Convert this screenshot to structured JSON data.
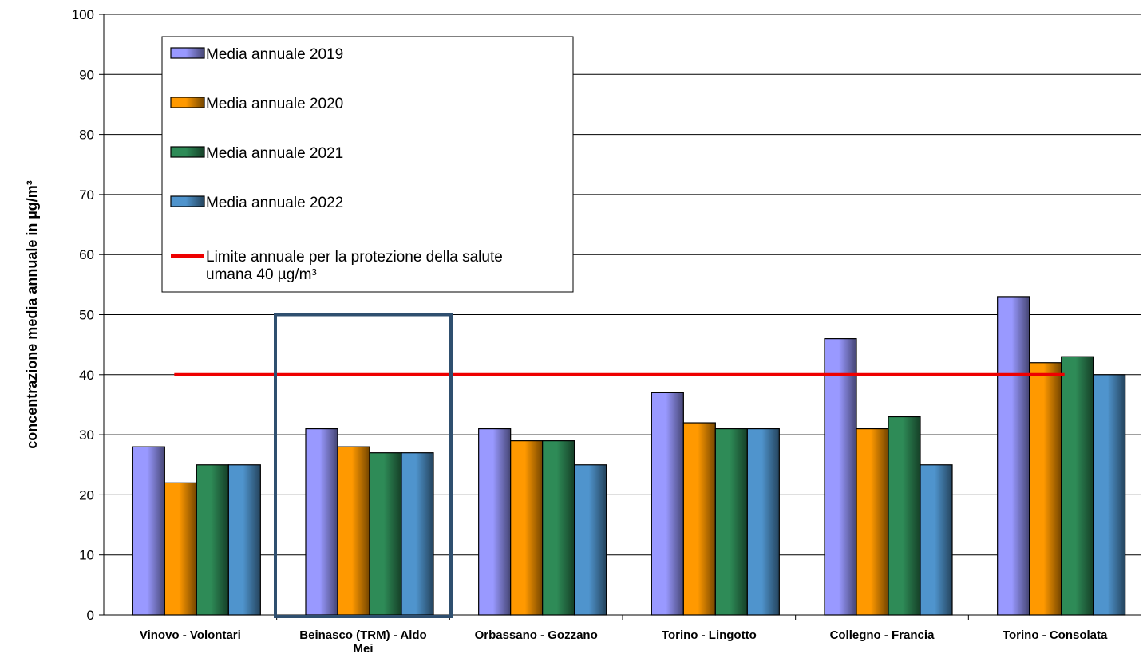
{
  "chart_data": {
    "type": "bar",
    "title": "",
    "xlabel": "",
    "ylabel": "concentrazione media annuale in µg/m³",
    "ylim": [
      0,
      100
    ],
    "yticks": [
      0,
      10,
      20,
      30,
      40,
      50,
      60,
      70,
      80,
      90,
      100
    ],
    "grid": true,
    "legend_position": "top-left",
    "categories": [
      [
        "Vinovo - Volontari"
      ],
      [
        "Beinasco (TRM) - Aldo",
        "Mei"
      ],
      [
        "Orbassano - Gozzano"
      ],
      [
        "Torino - Lingotto"
      ],
      [
        "Collegno - Francia"
      ],
      [
        "Torino - Consolata"
      ]
    ],
    "series": [
      {
        "name": "Media annuale 2019",
        "color": "#9999ff",
        "values": [
          28,
          31,
          31,
          37,
          46,
          53
        ]
      },
      {
        "name": "Media annuale 2020",
        "color": "#ff9900",
        "values": [
          22,
          28,
          29,
          32,
          31,
          42
        ]
      },
      {
        "name": "Media annuale 2021",
        "color": "#2e8b57",
        "values": [
          25,
          27,
          29,
          31,
          33,
          43
        ]
      },
      {
        "name": "Media annuale 2022",
        "color": "#4f94cd",
        "values": [
          25,
          27,
          25,
          31,
          25,
          40
        ]
      }
    ],
    "limit_line": {
      "name": [
        "Limite annuale per la protezione della salute",
        "umana 40 µg/m³"
      ],
      "value": 40,
      "color": "#ee0000"
    },
    "highlight_category": 1,
    "highlight_color": "#2f4f6f"
  }
}
